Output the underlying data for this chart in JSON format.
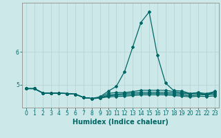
{
  "xlabel": "Humidex (Indice chaleur)",
  "bg_color": "#cce8e8",
  "grid_color": "#b8d4d4",
  "line_color": "#006666",
  "spine_color": "#999999",
  "xlim": [
    -0.5,
    23.5
  ],
  "ylim": [
    4.3,
    7.5
  ],
  "yticks": [
    5,
    6
  ],
  "xticks": [
    0,
    1,
    2,
    3,
    4,
    5,
    6,
    7,
    8,
    9,
    10,
    11,
    12,
    13,
    14,
    15,
    16,
    17,
    18,
    19,
    20,
    21,
    22,
    23
  ],
  "series": [
    [
      4.88,
      4.88,
      4.75,
      4.74,
      4.74,
      4.73,
      4.71,
      4.61,
      4.58,
      4.63,
      4.8,
      4.95,
      5.4,
      6.15,
      6.9,
      7.22,
      5.9,
      5.05,
      4.82,
      4.81,
      4.73,
      4.76,
      4.67,
      4.8
    ],
    [
      4.88,
      4.88,
      4.75,
      4.74,
      4.74,
      4.73,
      4.71,
      4.61,
      4.58,
      4.61,
      4.74,
      4.76,
      4.76,
      4.79,
      4.83,
      4.83,
      4.83,
      4.83,
      4.79,
      4.76,
      4.73,
      4.76,
      4.73,
      4.79
    ],
    [
      4.88,
      4.88,
      4.75,
      4.74,
      4.74,
      4.73,
      4.71,
      4.61,
      4.58,
      4.59,
      4.69,
      4.71,
      4.73,
      4.75,
      4.77,
      4.77,
      4.77,
      4.77,
      4.75,
      4.73,
      4.71,
      4.73,
      4.71,
      4.75
    ],
    [
      4.88,
      4.88,
      4.75,
      4.74,
      4.74,
      4.73,
      4.71,
      4.61,
      4.58,
      4.59,
      4.66,
      4.68,
      4.69,
      4.71,
      4.73,
      4.73,
      4.73,
      4.73,
      4.71,
      4.69,
      4.66,
      4.69,
      4.69,
      4.71
    ],
    [
      4.88,
      4.88,
      4.75,
      4.74,
      4.74,
      4.73,
      4.71,
      4.61,
      4.58,
      4.59,
      4.63,
      4.64,
      4.65,
      4.67,
      4.69,
      4.69,
      4.69,
      4.69,
      4.67,
      4.65,
      4.63,
      4.65,
      4.64,
      4.66
    ]
  ],
  "marker": "D",
  "markersize": 2.0,
  "linewidth": 0.9,
  "tick_fontsize": 5.5,
  "label_fontsize": 7.0
}
